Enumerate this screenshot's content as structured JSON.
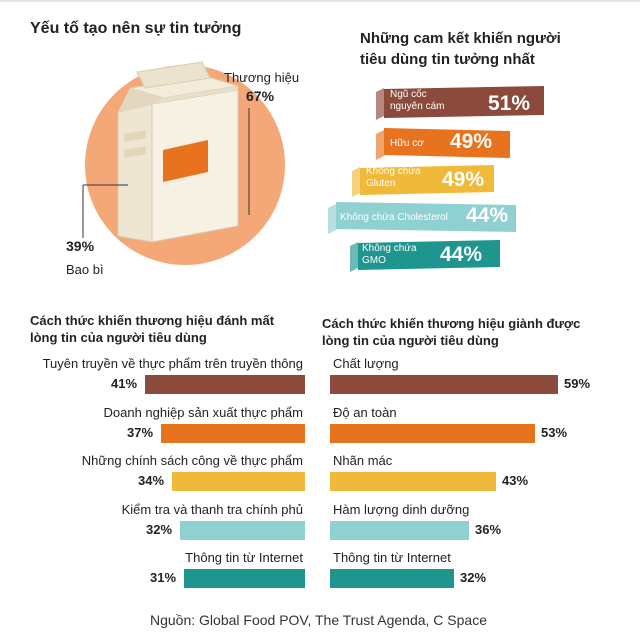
{
  "title": "Yếu tố tạo nên sự tin tưởng",
  "source": "Nguồn:  Global Food POV, The Trust Agenda, C Space",
  "colors": {
    "brown": "#8b4a3c",
    "orange": "#e8731f",
    "yellow": "#f0b93a",
    "light_teal": "#8fd0d0",
    "teal": "#1e958f",
    "pie_fill": "#f4a877"
  },
  "chart_data": [
    {
      "type": "pie",
      "title": "Yếu tố tạo nên sự tin tưởng",
      "slices": [
        {
          "label": "Thương hiệu",
          "value": 67,
          "value_label": "67%"
        },
        {
          "label": "Bao bì",
          "value": 39,
          "value_label": "39%"
        }
      ]
    },
    {
      "type": "bar",
      "title": "Những cam kết khiến người tiêu dùng tin tưởng nhất",
      "items": [
        {
          "label": "Ngũ cốc nguyên cám",
          "value": 51,
          "value_label": "51%",
          "color": "#8b4a3c"
        },
        {
          "label": "Hữu cơ",
          "value": 49,
          "value_label": "49%",
          "color": "#e8731f"
        },
        {
          "label": "Không chứa Gluten",
          "value": 49,
          "value_label": "49%",
          "color": "#f0b93a"
        },
        {
          "label": "Không chứa Cholesterol",
          "value": 44,
          "value_label": "44%",
          "color": "#8fd0d0"
        },
        {
          "label": "Không chứa GMO",
          "value": 44,
          "value_label": "44%",
          "color": "#1e958f"
        }
      ]
    },
    {
      "type": "bar",
      "title": "Cách thức khiến thương hiệu đánh mất lòng tin của người tiêu dùng",
      "title_lines": [
        "Cách thức khiến thương hiệu đánh mất",
        "lòng tin của người tiêu dùng"
      ],
      "items": [
        {
          "label": "Tuyên truyền về thực phẩm trên truyền thông",
          "value": 41,
          "value_label": "41%",
          "color": "#8b4a3c"
        },
        {
          "label": "Doanh nghiệp sản xuất thực phẩm",
          "value": 37,
          "value_label": "37%",
          "color": "#e8731f"
        },
        {
          "label": "Những chính sách công về thực phẩm",
          "value": 34,
          "value_label": "34%",
          "color": "#f0b93a"
        },
        {
          "label": "Kiểm tra và thanh tra chính phủ",
          "value": 32,
          "value_label": "32%",
          "color": "#8fd0d0"
        },
        {
          "label": "Thông tin từ Internet",
          "value": 31,
          "value_label": "31%",
          "color": "#1e958f"
        }
      ]
    },
    {
      "type": "bar",
      "title": "Cách thức khiến thương hiệu giành được lòng tin của người tiêu dùng",
      "title_lines": [
        "Cách thức khiến thương hiệu giành được",
        "lòng tin của người tiêu dùng"
      ],
      "items": [
        {
          "label": "Chất lượng",
          "value": 59,
          "value_label": "59%",
          "color": "#8b4a3c"
        },
        {
          "label": "Độ an toàn",
          "value": 53,
          "value_label": "53%",
          "color": "#e8731f"
        },
        {
          "label": "Nhãn mác",
          "value": 43,
          "value_label": "43%",
          "color": "#f0b93a"
        },
        {
          "label": "Hàm lượng dinh dưỡng",
          "value": 36,
          "value_label": "36%",
          "color": "#8fd0d0"
        },
        {
          "label": "Thông tin từ Internet",
          "value": 32,
          "value_label": "32%",
          "color": "#1e958f"
        }
      ]
    }
  ]
}
